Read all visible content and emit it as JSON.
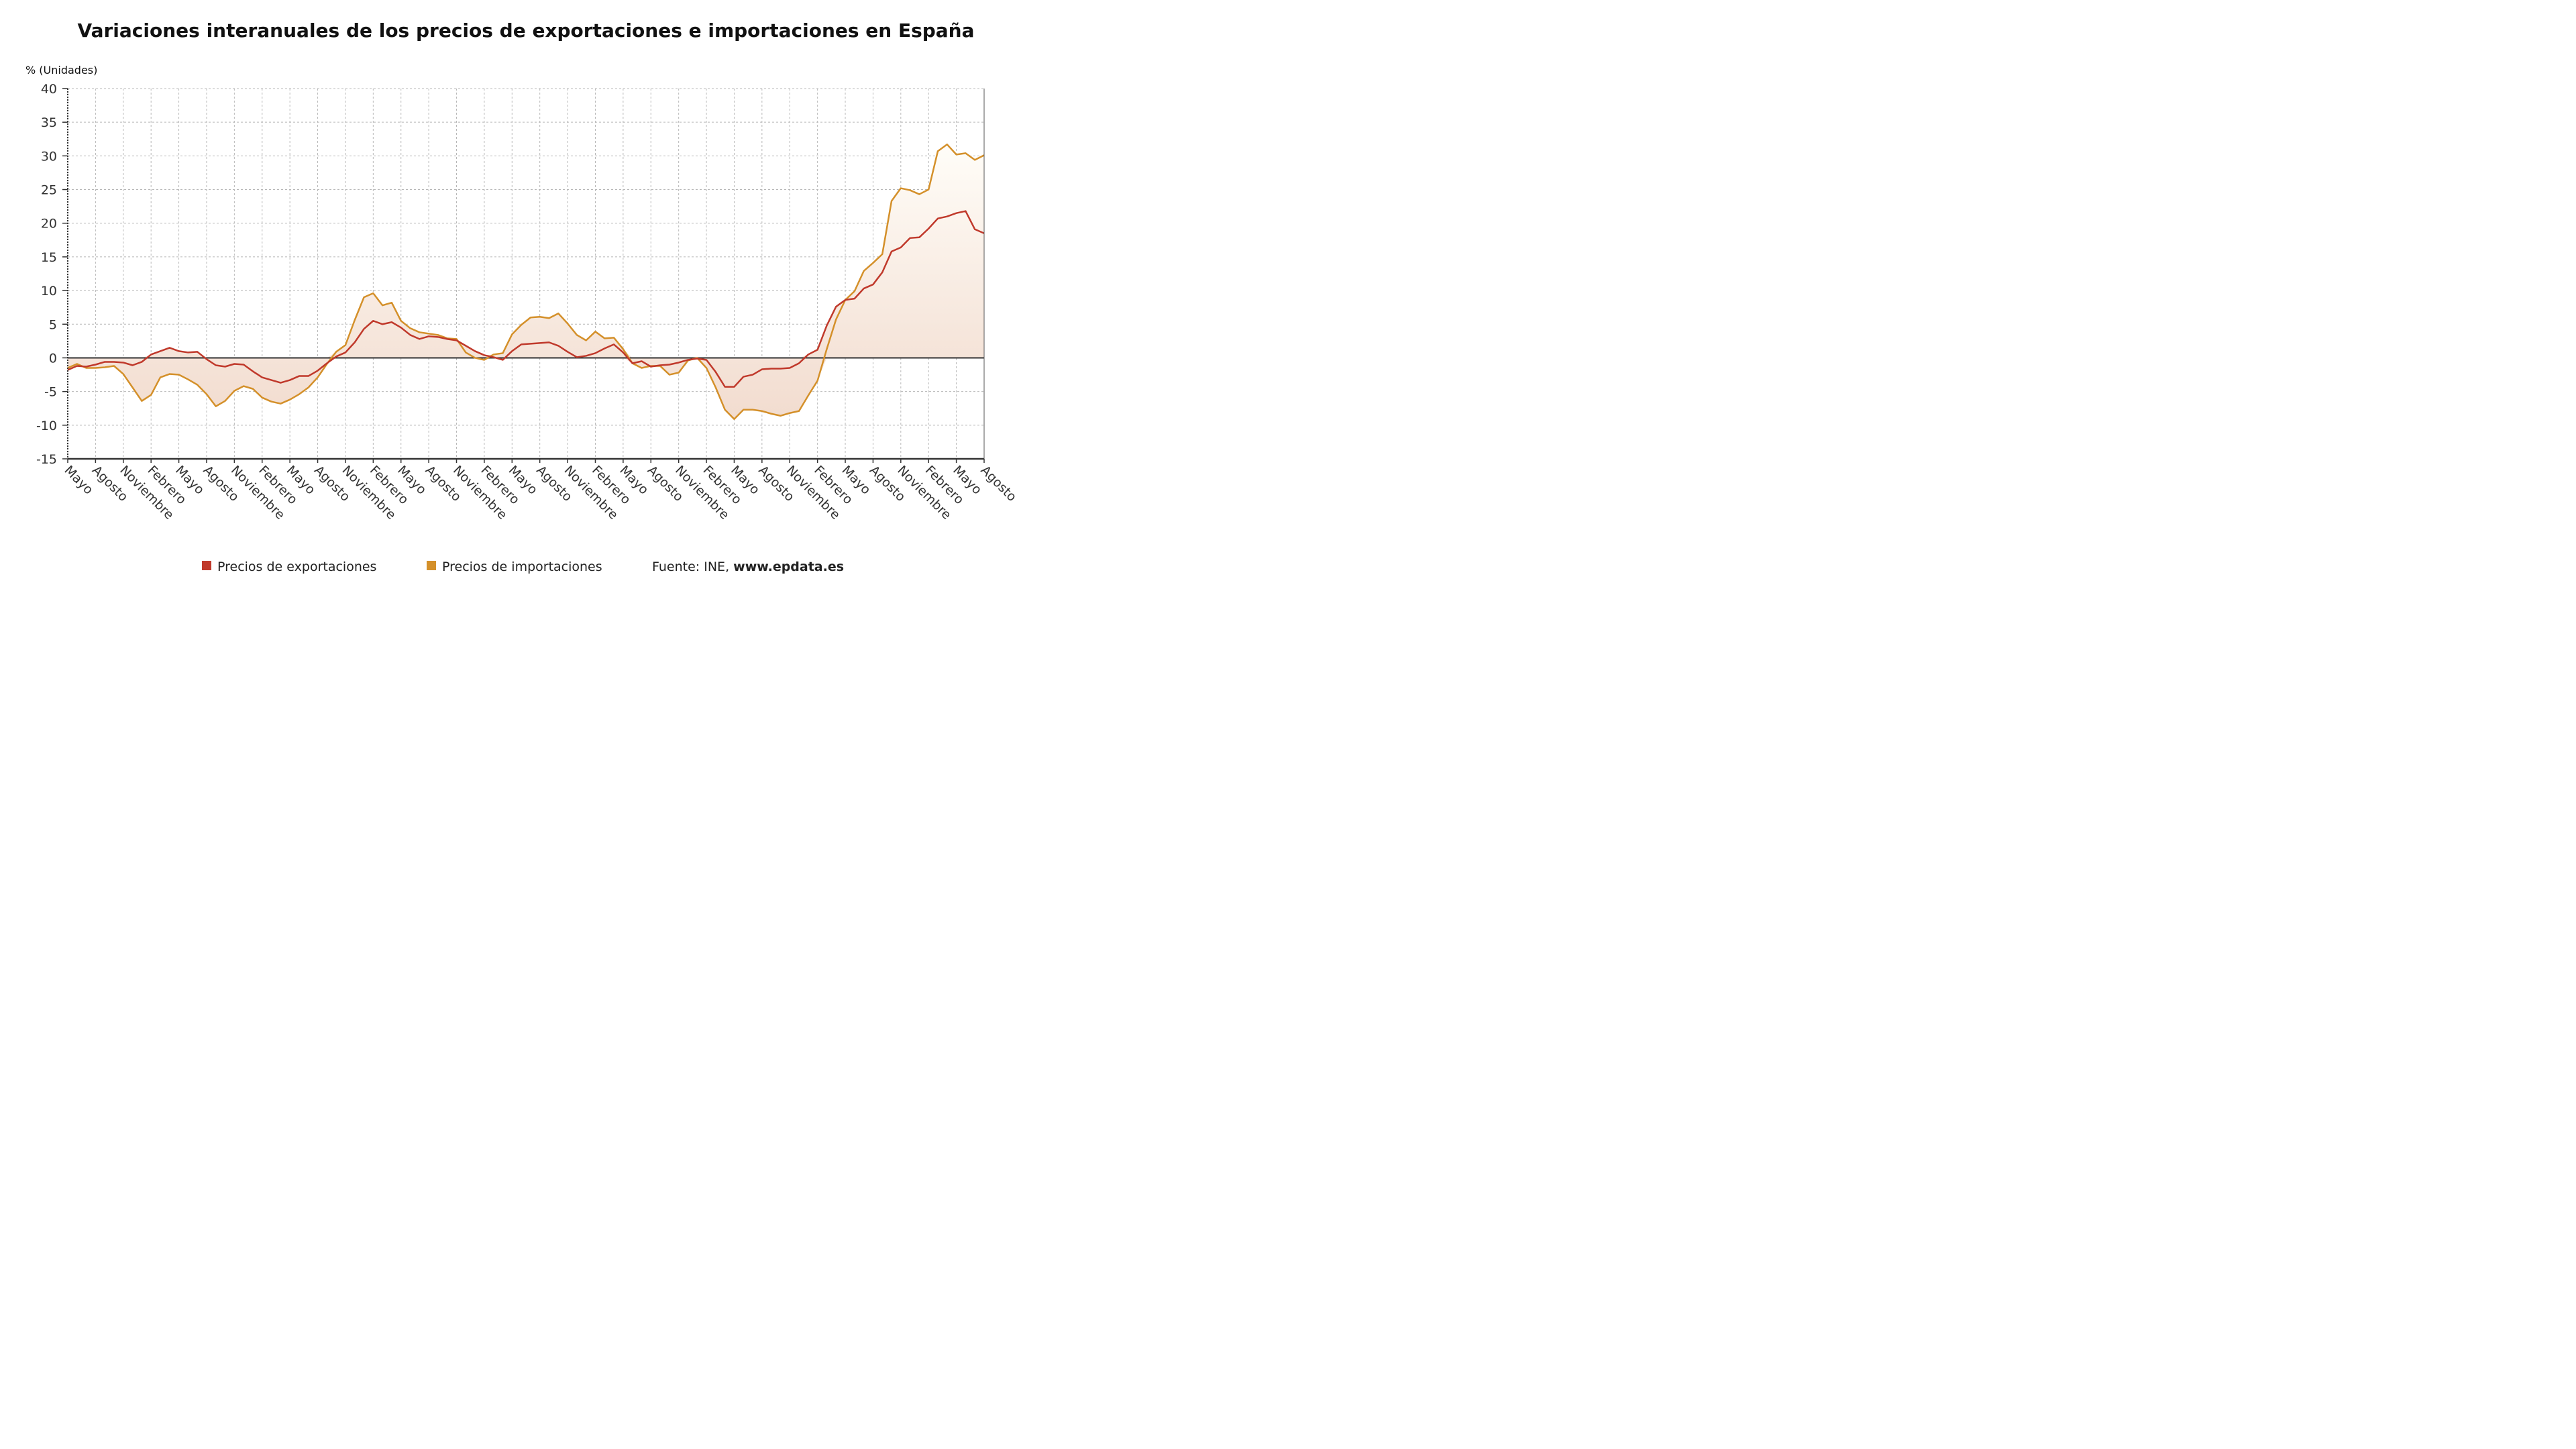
{
  "chart_data": {
    "type": "area",
    "title": "Variaciones interanuales de los precios de exportaciones e importaciones en España",
    "ylabel": "% (Unidades)",
    "xlabel": "",
    "ylim": [
      -15,
      40
    ],
    "yticks": [
      40,
      35,
      30,
      25,
      20,
      15,
      10,
      5,
      0,
      -5,
      -10,
      -15
    ],
    "grid": true,
    "legend_position": "bottom",
    "x_tick_labels": [
      "Mayo",
      "Agosto",
      "Noviembre",
      "Febrero",
      "Mayo",
      "Agosto",
      "Noviembre",
      "Febrero",
      "Mayo",
      "Agosto",
      "Noviembre",
      "Febrero",
      "Mayo",
      "Agosto",
      "Noviembre",
      "Febrero",
      "Mayo",
      "Agosto",
      "Noviembre",
      "Febrero",
      "Mayo",
      "Agosto",
      "Noviembre",
      "Febrero",
      "Mayo",
      "Agosto",
      "Noviembre",
      "Febrero",
      "Mayo",
      "Agosto",
      "Noviembre",
      "Febrero",
      "Mayo",
      "Agosto"
    ],
    "series": [
      {
        "name": "Precios de exportaciones",
        "color": "#c0392b",
        "values": [
          -1.8,
          -1.2,
          -1.3,
          -1.0,
          -0.6,
          -0.6,
          -0.7,
          -1.1,
          -0.6,
          0.5,
          1.0,
          1.5,
          1.0,
          0.8,
          0.9,
          -0.2,
          -1.1,
          -1.3,
          -0.9,
          -1.0,
          -2.0,
          -2.9,
          -3.3,
          -3.7,
          -3.3,
          -2.7,
          -2.7,
          -1.9,
          -0.8,
          0.2,
          0.8,
          2.3,
          4.3,
          5.5,
          5.0,
          5.3,
          4.5,
          3.4,
          2.8,
          3.2,
          3.1,
          2.8,
          2.6,
          1.8,
          1.0,
          0.4,
          0.1,
          -0.3,
          1.0,
          2.0,
          2.1,
          2.2,
          2.3,
          1.8,
          0.9,
          0.1,
          0.3,
          0.7,
          1.4,
          2.0,
          0.8,
          -0.8,
          -0.5,
          -1.3,
          -1.1,
          -1.0,
          -0.7,
          -0.3,
          -0.1,
          -0.3,
          -2.1,
          -4.3,
          -4.3,
          -2.8,
          -2.5,
          -1.7,
          -1.6,
          -1.6,
          -1.5,
          -0.8,
          0.5,
          1.2,
          4.8,
          7.6,
          8.6,
          8.8,
          10.3,
          10.9,
          12.7,
          15.8,
          16.4,
          17.8,
          17.9,
          19.2,
          20.7,
          21.0,
          21.5,
          21.8,
          19.1,
          18.5
        ]
      },
      {
        "name": "Precios de importaciones",
        "color": "#d4902a",
        "values": [
          -1.5,
          -0.9,
          -1.5,
          -1.5,
          -1.4,
          -1.2,
          -2.4,
          -4.4,
          -6.4,
          -5.5,
          -2.9,
          -2.4,
          -2.5,
          -3.2,
          -4.0,
          -5.4,
          -7.2,
          -6.4,
          -4.9,
          -4.2,
          -4.6,
          -5.9,
          -6.5,
          -6.8,
          -6.2,
          -5.4,
          -4.4,
          -2.9,
          -0.9,
          0.9,
          1.9,
          5.6,
          9.0,
          9.6,
          7.8,
          8.2,
          5.5,
          4.4,
          3.8,
          3.6,
          3.4,
          2.9,
          2.8,
          0.8,
          0.0,
          -0.3,
          0.5,
          0.7,
          3.5,
          4.9,
          6.0,
          6.1,
          5.9,
          6.6,
          5.1,
          3.4,
          2.6,
          3.9,
          2.9,
          3.0,
          1.3,
          -0.8,
          -1.5,
          -1.2,
          -1.2,
          -2.5,
          -2.2,
          -0.4,
          0.0,
          -1.5,
          -4.4,
          -7.7,
          -9.1,
          -7.7,
          -7.7,
          -7.9,
          -8.3,
          -8.6,
          -8.2,
          -7.9,
          -5.6,
          -3.4,
          1.3,
          5.7,
          8.6,
          9.9,
          12.9,
          14.1,
          15.4,
          23.3,
          25.2,
          24.9,
          24.3,
          25.0,
          30.7,
          31.7,
          30.2,
          30.4,
          29.4,
          30.1
        ]
      }
    ]
  },
  "legend": {
    "items": [
      {
        "label": "Precios de exportaciones",
        "color": "#c0392b"
      },
      {
        "label": "Precios de importaciones",
        "color": "#d4902a"
      }
    ],
    "source_prefix": "Fuente: INE,",
    "source_site": "www.epdata.es"
  }
}
